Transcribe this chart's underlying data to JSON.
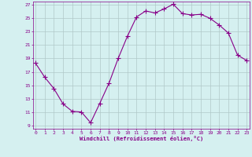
{
  "x": [
    0,
    1,
    2,
    3,
    4,
    5,
    6,
    7,
    8,
    9,
    10,
    11,
    12,
    13,
    14,
    15,
    16,
    17,
    18,
    19,
    20,
    21,
    22,
    23
  ],
  "y": [
    18.3,
    16.2,
    14.5,
    12.2,
    11.1,
    11.0,
    9.4,
    12.3,
    15.3,
    19.0,
    22.3,
    25.2,
    26.1,
    25.8,
    26.4,
    27.1,
    25.7,
    25.5,
    25.6,
    25.0,
    24.0,
    22.8,
    19.5,
    18.7
  ],
  "line_color": "#880088",
  "marker": "+",
  "marker_size": 4,
  "bg_color": "#d5f0f0",
  "grid_color": "#b0c8c8",
  "xlabel": "Windchill (Refroidissement éolien,°C)",
  "xlabel_color": "#880088",
  "tick_color": "#880088",
  "ylim": [
    8.5,
    27.5
  ],
  "yticks": [
    9,
    11,
    13,
    15,
    17,
    19,
    21,
    23,
    25,
    27
  ],
  "xticks": [
    0,
    1,
    2,
    3,
    4,
    5,
    6,
    7,
    8,
    9,
    10,
    11,
    12,
    13,
    14,
    15,
    16,
    17,
    18,
    19,
    20,
    21,
    22,
    23
  ],
  "xlim": [
    -0.3,
    23.3
  ]
}
